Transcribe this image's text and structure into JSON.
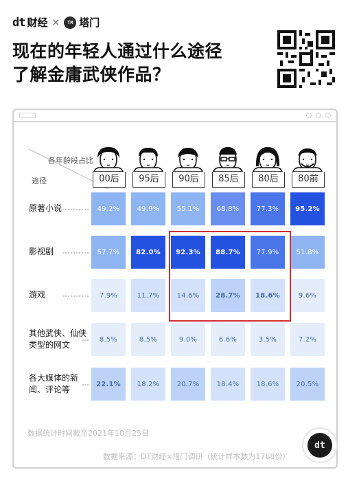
{
  "brand": {
    "dt_mark": "dt",
    "dt_name": "财经",
    "separator": "×",
    "tm_badge": "TM",
    "tm_name": "塔门"
  },
  "headline": [
    "现在的年轻人通过什么途径",
    "了解金庸武侠作品？"
  ],
  "fab_label": "dt",
  "chart_data": {
    "type": "table",
    "corner_labels": {
      "column_header": "各年龄段占比",
      "row_header": "途径"
    },
    "columns": [
      "00后",
      "95后",
      "90后",
      "85后",
      "80后",
      "80前"
    ],
    "rows": [
      {
        "label": "原著小说",
        "values": [
          "49.2%",
          "49.9%",
          "55.1%",
          "68.8%",
          "77.3%",
          "95.2%"
        ]
      },
      {
        "label": "影视剧",
        "values": [
          "57.7%",
          "82.0%",
          "92.3%",
          "88.7%",
          "77.9%",
          "51.8%"
        ]
      },
      {
        "label": "游戏",
        "values": [
          "7.9%",
          "11.7%",
          "14.6%",
          "28.7%",
          "18.6%",
          "9.6%"
        ]
      },
      {
        "label": "其他武侠、仙侠类型的网文",
        "values": [
          "8.5%",
          "8.5%",
          "9.0%",
          "6.6%",
          "3.5%",
          "7.2%"
        ]
      },
      {
        "label": "各大媒体的新闻、评论等",
        "values": [
          "22.1%",
          "18.2%",
          "20.7%",
          "18.4%",
          "18.6%",
          "20.5%"
        ]
      }
    ],
    "colors": {
      "low": "#e4eefb",
      "mid": "#8fb4f2",
      "high": "#2452e0"
    }
  },
  "notes": {
    "date_note": "数据统计时间截至2021年10月25日",
    "source_note": "数据来源：DT财经×塔门调研（统计样本数为1768份）"
  }
}
